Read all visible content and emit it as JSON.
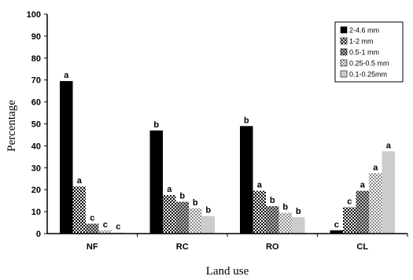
{
  "chart_data": {
    "type": "bar",
    "xlabel": "Land use",
    "ylabel": "Percentage",
    "ylim": [
      0,
      100
    ],
    "yticks": [
      "0",
      "10",
      "20",
      "30",
      "40",
      "50",
      "60",
      "70",
      "80",
      "90",
      "100"
    ],
    "categories": [
      "NF",
      "RC",
      "RO",
      "CL"
    ],
    "legend_position": "top-right",
    "grid": false,
    "series": [
      {
        "name": "2-4.6 mm",
        "color": "#000000",
        "pattern": "solid",
        "values": [
          69.5,
          47,
          49,
          1.5
        ],
        "labels": [
          "a",
          "b",
          "b",
          "c"
        ]
      },
      {
        "name": "1-2 mm",
        "color": "#222222",
        "pattern": "dense-check",
        "values": [
          21.5,
          17.5,
          19.5,
          12
        ],
        "labels": [
          "a",
          "a",
          "a",
          "c"
        ]
      },
      {
        "name": "0.5-1 mm",
        "color": "#444444",
        "pattern": "medium-check",
        "values": [
          4.5,
          14.5,
          12.5,
          19.5
        ],
        "labels": [
          "c",
          "b",
          "b",
          "a"
        ]
      },
      {
        "name": "0.25-0.5 mm",
        "color": "#777777",
        "pattern": "light-check",
        "values": [
          1.5,
          11.5,
          9.5,
          27.5
        ],
        "labels": [
          "c",
          "b",
          "b",
          "a"
        ]
      },
      {
        "name": "0.1-0.25mm",
        "color": "#cccccc",
        "pattern": "solid-light",
        "values": [
          0.5,
          8,
          7.5,
          37.5
        ],
        "labels": [
          "c",
          "b",
          "b",
          "a"
        ]
      }
    ]
  }
}
